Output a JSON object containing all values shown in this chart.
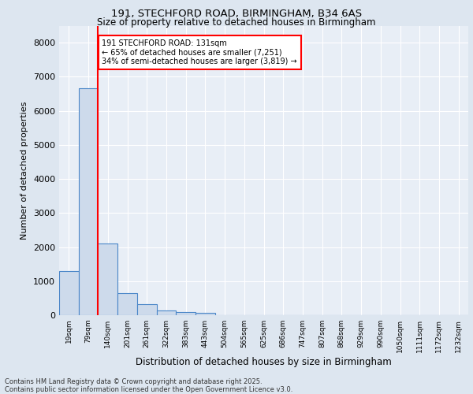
{
  "title_line1": "191, STECHFORD ROAD, BIRMINGHAM, B34 6AS",
  "title_line2": "Size of property relative to detached houses in Birmingham",
  "xlabel": "Distribution of detached houses by size in Birmingham",
  "ylabel": "Number of detached properties",
  "footer_line1": "Contains HM Land Registry data © Crown copyright and database right 2025.",
  "footer_line2": "Contains public sector information licensed under the Open Government Licence v3.0.",
  "annotation_line1": "191 STECHFORD ROAD: 131sqm",
  "annotation_line2": "← 65% of detached houses are smaller (7,251)",
  "annotation_line3": "34% of semi-detached houses are larger (3,819) →",
  "bin_labels": [
    "19sqm",
    "79sqm",
    "140sqm",
    "201sqm",
    "261sqm",
    "322sqm",
    "383sqm",
    "443sqm",
    "504sqm",
    "565sqm",
    "625sqm",
    "686sqm",
    "747sqm",
    "807sqm",
    "868sqm",
    "929sqm",
    "990sqm",
    "1050sqm",
    "1111sqm",
    "1172sqm",
    "1232sqm"
  ],
  "bar_values": [
    1300,
    6650,
    2100,
    650,
    330,
    130,
    100,
    60,
    0,
    0,
    0,
    0,
    0,
    0,
    0,
    0,
    0,
    0,
    0,
    0,
    0
  ],
  "bar_color": "#cddaeb",
  "bar_edge_color": "#4a86c8",
  "ylim": [
    0,
    8500
  ],
  "yticks": [
    0,
    1000,
    2000,
    3000,
    4000,
    5000,
    6000,
    7000,
    8000
  ],
  "bg_color": "#dde6f0",
  "plot_bg_color": "#e8eef6"
}
